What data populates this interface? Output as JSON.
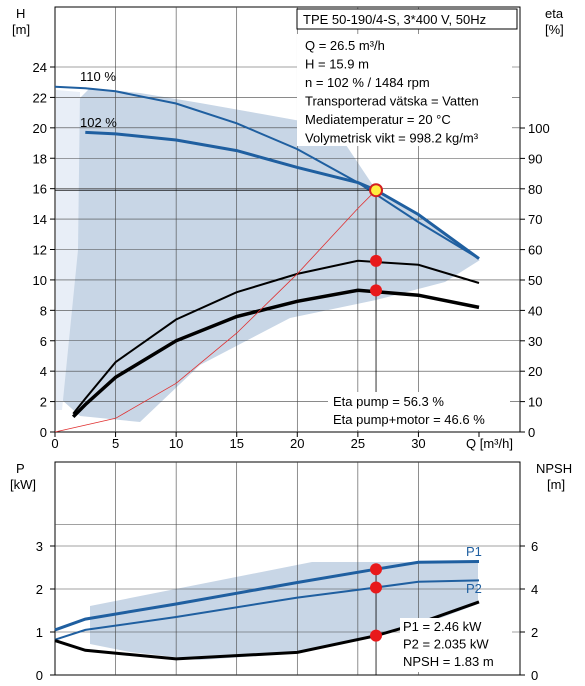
{
  "chart_data": [
    {
      "type": "line",
      "title": "TPE 50-190/4-S, 3*400 V, 50Hz",
      "xlabel": "Q [m³/h]",
      "y_left_label": "H",
      "y_left_unit": "[m]",
      "y_right_label": "eta",
      "y_right_unit": "[%]",
      "xlim": [
        0,
        35
      ],
      "ylim_left": [
        0,
        24
      ],
      "ylim_right": [
        0,
        100
      ],
      "x_ticks": [
        "0",
        "5",
        "10",
        "15",
        "20",
        "25",
        "30",
        "Q [m³/h]"
      ],
      "y_left_ticks": [
        "0",
        "2",
        "4",
        "6",
        "8",
        "10",
        "12",
        "14",
        "16",
        "18",
        "20",
        "22",
        "24"
      ],
      "y_right_ticks": [
        "0",
        "10",
        "20",
        "30",
        "40",
        "50",
        "60",
        "70",
        "80",
        "90",
        "100"
      ],
      "grid": true,
      "info_lines": [
        "Q = 26.5 m³/h",
        "H = 15.9 m",
        "n = 102 % / 1484 rpm",
        "Transporterad vätska = Vatten",
        "Mediatemperatur = 20 °C",
        "Volymetrisk vikt = 998.2 kg/m³"
      ],
      "eta_lines": [
        "Eta pump = 56.3 %",
        "Eta pump+motor = 46.6 %"
      ],
      "curve_labels": [
        "110 %",
        "102 %"
      ],
      "series": [
        {
          "name": "110 %",
          "axis": "H",
          "x": [
            0,
            2.5,
            5,
            10,
            15,
            20,
            25,
            30,
            35
          ],
          "values": [
            22.7,
            22.6,
            22.4,
            21.6,
            20.3,
            18.6,
            16.4,
            13.8,
            11.4
          ]
        },
        {
          "name": "102 %",
          "axis": "H",
          "x": [
            2.5,
            5,
            10,
            15,
            20,
            25,
            26.5,
            30,
            35
          ],
          "values": [
            19.7,
            19.6,
            19.2,
            18.5,
            17.4,
            16.4,
            15.9,
            14.3,
            11.4
          ]
        },
        {
          "axis": "eta",
          "x": [
            1.5,
            2.5,
            5,
            10,
            15,
            20,
            25,
            30,
            35
          ],
          "values": [
            6,
            11,
            23,
            37,
            46,
            52,
            56.3,
            55,
            49
          ]
        },
        {
          "axis": "eta",
          "x": [
            1.5,
            2.5,
            5,
            10,
            15,
            20,
            25,
            30,
            35
          ],
          "values": [
            5,
            9,
            18,
            30,
            38,
            43,
            46.6,
            45,
            41
          ]
        },
        {
          "axis": "H",
          "x": [
            0,
            5,
            10,
            15,
            20,
            25,
            26.5
          ],
          "values": [
            0,
            0.9,
            3.2,
            6.5,
            10.4,
            14.7,
            15.9
          ]
        }
      ],
      "operating_point": {
        "Q": 26.5,
        "H": 15.9,
        "eta_pump": 56.3,
        "eta_pump_motor": 46.6
      }
    },
    {
      "type": "line",
      "y_left_label": "P",
      "y_left_unit": "[kW]",
      "y_right_label": "NPSH",
      "y_right_unit": "[m]",
      "xlim": [
        0,
        35
      ],
      "ylim_left": [
        0,
        4
      ],
      "ylim_right": [
        0,
        8
      ],
      "y_left_ticks": [
        "0",
        "1",
        "2",
        "3"
      ],
      "y_right_ticks": [
        "0",
        "2",
        "4",
        "6"
      ],
      "grid": true,
      "info_lines": [
        "P1 = 2.46 kW",
        "P2 = 2.035 kW",
        "NPSH = 1.83 m"
      ],
      "series": [
        {
          "name": "P1",
          "axis": "P",
          "x": [
            0,
            2.5,
            10,
            20,
            26.5,
            30,
            35
          ],
          "values": [
            1.05,
            1.3,
            1.65,
            2.15,
            2.46,
            2.62,
            2.64
          ]
        },
        {
          "name": "P2",
          "axis": "P",
          "x": [
            0,
            2.5,
            10,
            20,
            26.5,
            30,
            35
          ],
          "values": [
            0.82,
            1.05,
            1.35,
            1.8,
            2.035,
            2.17,
            2.2
          ]
        },
        {
          "name": "NPSH",
          "axis": "NPSH",
          "x": [
            0,
            2.5,
            10,
            20,
            26.5,
            30,
            35
          ],
          "values": [
            1.6,
            1.15,
            0.75,
            1.05,
            1.83,
            2.4,
            3.4
          ]
        }
      ],
      "operating_point": {
        "Q": 26.5,
        "P1": 2.46,
        "P2": 2.035,
        "NPSH": 1.83
      }
    }
  ],
  "colors": {
    "dark_blue": "#1f5fa0",
    "fill": "#c8d6e6",
    "point": "#e8191b",
    "grid": "#000000"
  }
}
